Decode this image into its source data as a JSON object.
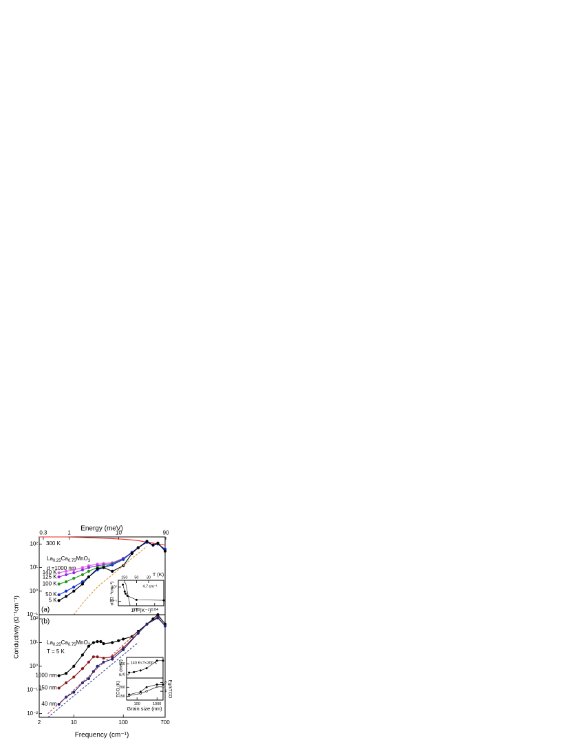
{
  "chart_data": [
    {
      "type": "line",
      "panel_label": "(a)",
      "x2label": "Energy (meV)",
      "x2lim": [
        0.248,
        86.8
      ],
      "x2ticks": [
        0.3,
        1,
        10,
        90
      ],
      "xlim": [
        2,
        700
      ],
      "xlog": true,
      "ylog": true,
      "ylim": [
        0.1,
        200
      ],
      "yticks": [
        {
          "value": 0.1,
          "label": "10⁻¹"
        },
        {
          "value": 1,
          "label": "10⁰"
        },
        {
          "value": 10,
          "label": "10¹"
        },
        {
          "value": 100,
          "label": "10²"
        }
      ],
      "ylabel": "Conductivity (Ω⁻¹cm⁻¹)",
      "formula": [
        "La",
        "0.25",
        "Ca",
        "0.75",
        "MnO",
        "3"
      ],
      "annotation": "d =1000 nm",
      "x": [
        2,
        5,
        7,
        10,
        15,
        20,
        30,
        40,
        60,
        100,
        150,
        200,
        300,
        400,
        500,
        700
      ],
      "series": [
        {
          "name": "300 K",
          "color": "#e8231e",
          "values": [
            200,
            200,
            200,
            195,
            190,
            185,
            180,
            175,
            170,
            160,
            150,
            140,
            120,
            110,
            100,
            90
          ]
        },
        {
          "name": "140 K",
          "color": "#e05be6",
          "marker": true,
          "values": [
            null,
            6,
            7,
            8,
            10,
            12,
            14,
            15,
            16,
            25,
            45,
            70,
            120,
            90,
            100,
            60
          ]
        },
        {
          "name": "125 K",
          "color": "#8a2be2",
          "marker": true,
          "values": [
            null,
            4,
            5,
            6,
            8,
            10,
            12,
            13,
            15,
            24,
            45,
            70,
            120,
            90,
            100,
            60
          ]
        },
        {
          "name": "100 K",
          "color": "#1a9a1a",
          "marker": true,
          "values": [
            null,
            2,
            2.5,
            3.5,
            5,
            7,
            10,
            11,
            14,
            23,
            44,
            70,
            120,
            90,
            100,
            60
          ]
        },
        {
          "name": "50 K",
          "color": "#1030e0",
          "marker": true,
          "values": [
            null,
            0.7,
            1,
            1.5,
            2.5,
            4,
            8,
            10,
            13,
            22,
            44,
            70,
            120,
            90,
            100,
            60
          ]
        },
        {
          "name": "5 K",
          "color": "#000000",
          "marker": true,
          "values": [
            null,
            0.4,
            0.6,
            1,
            2,
            4,
            9,
            10,
            7,
            12,
            40,
            70,
            130,
            90,
            110,
            50
          ]
        },
        {
          "color": "#d4902a",
          "dash": true,
          "values": [
            null,
            null,
            null,
            0.1,
            0.3,
            0.6,
            1.5,
            2.5,
            5,
            12,
            25,
            40,
            80,
            null,
            null,
            null
          ]
        }
      ]
    },
    {
      "type": "line",
      "panel_label": "(b)",
      "xlabel": "Frequency (cm⁻¹)",
      "xlim": [
        2,
        700
      ],
      "xlog": true,
      "xticks": [
        2,
        10,
        100,
        700
      ],
      "ylog": true,
      "ylim": [
        0.007,
        150
      ],
      "yticks": [
        {
          "value": 0.01,
          "label": "10⁻²"
        },
        {
          "value": 0.1,
          "label": "10⁻¹"
        },
        {
          "value": 1,
          "label": "10⁰"
        },
        {
          "value": 10,
          "label": "10¹"
        },
        {
          "value": 100,
          "label": "10²"
        }
      ],
      "formula": [
        "La",
        "0.25",
        "Ca",
        "0.75",
        "MnO",
        "3"
      ],
      "annotation": "T = 5 K",
      "series": [
        {
          "name": "1000 nm",
          "color": "#000000",
          "marker": true,
          "x": [
            5,
            7,
            10,
            15,
            20,
            25,
            30,
            35,
            40,
            60,
            80,
            100,
            150,
            200,
            300,
            400,
            500,
            700
          ],
          "values": [
            0.4,
            0.5,
            1,
            3,
            7,
            10,
            11,
            11,
            9,
            10,
            12,
            14,
            18,
            30,
            60,
            100,
            150,
            60
          ]
        },
        {
          "name": "150 nm",
          "color": "#8b1a1a",
          "marker": true,
          "x": [
            5,
            7,
            10,
            15,
            20,
            25,
            30,
            40,
            60,
            100,
            200,
            300,
            500,
            700
          ],
          "values": [
            0.12,
            0.2,
            0.35,
            0.8,
            1.5,
            2.5,
            2.5,
            2.2,
            2.5,
            6,
            25,
            60,
            120,
            50
          ]
        },
        {
          "name": "40 nm",
          "color": "#1a237e",
          "marker": true,
          "x": [
            5,
            7,
            10,
            15,
            20,
            25,
            30,
            40,
            60,
            100,
            200,
            300,
            500,
            700
          ],
          "values": [
            0.025,
            0.05,
            0.08,
            0.2,
            0.3,
            0.6,
            1,
            1.5,
            2,
            5,
            25,
            60,
            110,
            50
          ]
        },
        {
          "color": "#b03030",
          "dash": true,
          "x": [
            3,
            200
          ],
          "values": [
            0.01,
            30
          ]
        },
        {
          "color": "#1a237e",
          "dash": true,
          "x": [
            3,
            200
          ],
          "values": [
            0.007,
            10
          ]
        }
      ]
    },
    {
      "type": "line",
      "xlabel": "1/T (K⁻¹)",
      "xlim": [
        0,
        0.05
      ],
      "xticks": [
        0.02,
        0.04
      ],
      "x2label": "T (K)",
      "x2ticks": [
        150,
        50,
        30
      ],
      "ylabel": "σ (Ω⁻¹cm⁻¹)",
      "ylog": true,
      "ylim": [
        0.05,
        3
      ],
      "yticks": [
        {
          "value": 0.1,
          "label": "10⁻¹"
        },
        {
          "value": 1,
          "label": "10⁰"
        }
      ],
      "annotation": "4.7 cm⁻¹",
      "series": [
        {
          "color": "#000000",
          "marker": true,
          "x": [
            0.005,
            0.007,
            0.008,
            0.01,
            0.02,
            0.05
          ],
          "values": [
            1.5,
            0.5,
            0.35,
            0.25,
            0.13,
            0.12
          ]
        },
        {
          "color": "#000000",
          "x": [
            0.008,
            0.013
          ],
          "values": [
            2,
            0.05
          ]
        }
      ]
    },
    {
      "type": "line",
      "ylabel": "E (meV)",
      "xlim": [
        30,
        2000
      ],
      "xlog": true,
      "ylim": [
        -30,
        160
      ],
      "yticks": [
        0,
        100
      ],
      "annotation": "140 K<T<300 K",
      "series": [
        {
          "color": "#000000",
          "marker": true,
          "x": [
            40,
            70,
            150,
            300,
            1000,
            2000
          ],
          "values": [
            20,
            25,
            40,
            60,
            130,
            130
          ]
        }
      ]
    },
    {
      "type": "line",
      "xlabel": "Grain size (nm)",
      "xlim": [
        30,
        2000
      ],
      "xlog": true,
      "xticks": [
        100,
        1000
      ],
      "ylabel": "TCO (K)",
      "ylim": [
        130,
        250
      ],
      "yticks": [
        150,
        200
      ],
      "y2label": "Eg/kTCO",
      "y2lim": [
        0,
        10
      ],
      "y2ticks": [
        4,
        8
      ],
      "series": [
        {
          "color": "#000000",
          "marker": true,
          "x": [
            40,
            150,
            300,
            1000,
            2000
          ],
          "values": [
            160,
            175,
            200,
            215,
            215
          ]
        },
        {
          "color": "#000000",
          "marker": true,
          "open": true,
          "axis": "y2",
          "x": [
            40,
            150,
            300,
            1000,
            2000
          ],
          "values": [
            2,
            3,
            4,
            6,
            6
          ]
        }
      ]
    }
  ]
}
